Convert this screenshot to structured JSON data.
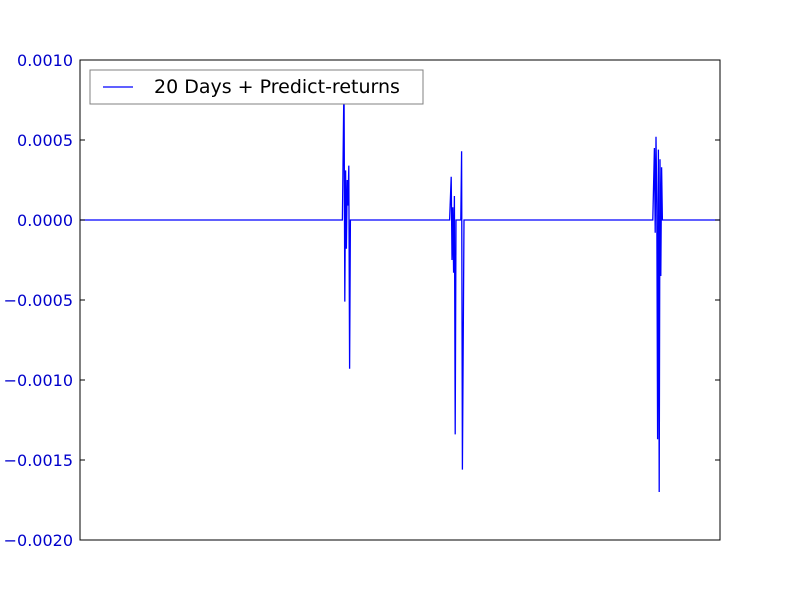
{
  "chart_data": {
    "type": "line",
    "title": "",
    "xlabel": "",
    "ylabel": "",
    "xlim": [
      0,
      400
    ],
    "ylim": [
      -0.002,
      0.001
    ],
    "yticks": [
      0.001,
      0.0005,
      0.0,
      -0.0005,
      -0.001,
      -0.0015,
      -0.002
    ],
    "ytick_labels": [
      "0.0010",
      "0.0005",
      "0.0000",
      "−0.0005",
      "−0.0010",
      "−0.0015",
      "−0.0020"
    ],
    "xticks_visible": false,
    "grid": false,
    "legend": {
      "position": "upper-left",
      "entries": [
        "20 Days + Predict-returns"
      ]
    },
    "colors": {
      "series": "#0000ff",
      "tick_labels": "#0000cc",
      "axes": "#000000",
      "legend_border": "#808080"
    },
    "series": [
      {
        "name": "20 Days + Predict-returns",
        "x": [
          0,
          164,
          165,
          165.5,
          166,
          166.5,
          167,
          167.5,
          168,
          168.5,
          169,
          169.5,
          170,
          170.5,
          171,
          172,
          173,
          174,
          231,
          232,
          232.5,
          233,
          233.5,
          234,
          234.5,
          235,
          235.5,
          236,
          237,
          238,
          238.5,
          239,
          240,
          241,
          358,
          359,
          359.5,
          360,
          360.5,
          361,
          361.5,
          362,
          362.5,
          363,
          363.5,
          364,
          365,
          400
        ],
        "y": [
          0,
          0,
          0.00089,
          -0.00051,
          0.00031,
          -0.00018,
          0.00025,
          9e-05,
          0.00034,
          -0.00093,
          0,
          0,
          0,
          0,
          0,
          0,
          0,
          0,
          0,
          0.00027,
          -0.00025,
          8e-05,
          -0.00033,
          0.00015,
          -0.00134,
          0,
          0,
          0,
          0,
          0,
          0.00043,
          -0.00156,
          0,
          0,
          0,
          0.00045,
          -8e-05,
          0.00052,
          0.0001,
          -0.00137,
          0.00044,
          -0.0017,
          0.00038,
          -0.00035,
          0.00033,
          0,
          0,
          0
        ]
      }
    ]
  }
}
